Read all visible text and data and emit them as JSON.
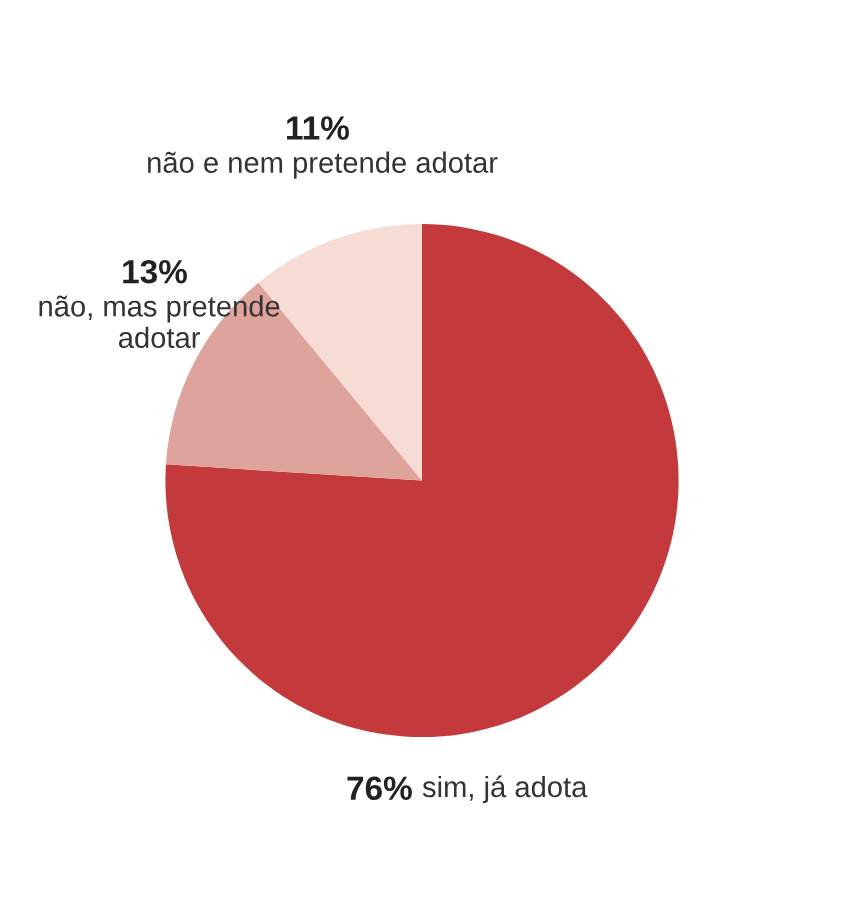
{
  "chart_data": {
    "type": "pie",
    "categories": [
      "sim, já adota",
      "não, mas pretende adotar",
      "não e nem pretende adotar"
    ],
    "values": [
      76,
      13,
      11
    ],
    "value_labels": [
      "76%",
      "13%",
      "11%"
    ],
    "colors": [
      "#c4393c",
      "#dea39b",
      "#f6dcd4"
    ],
    "legend": false
  }
}
